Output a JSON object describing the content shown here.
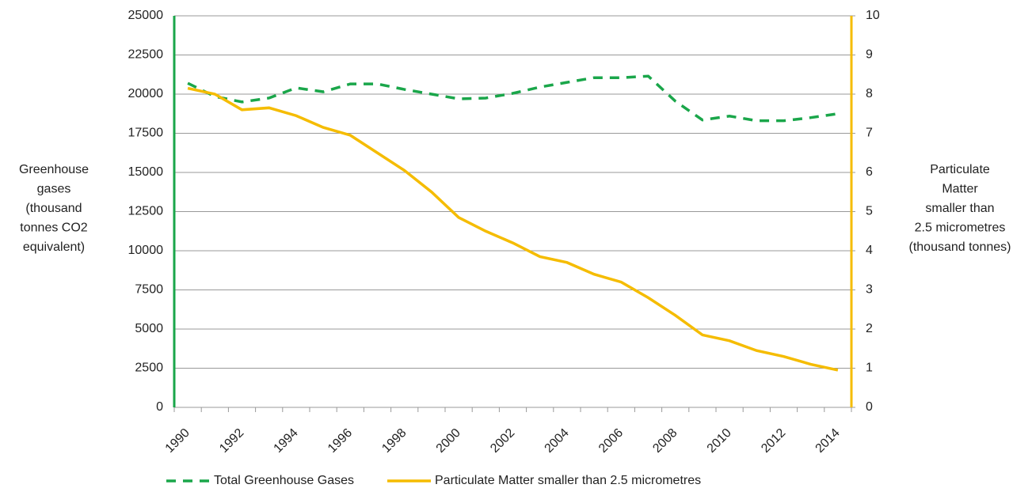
{
  "chart_data": {
    "type": "line",
    "y_label": [
      "Greenhouse",
      "gases",
      "(thousand",
      "tonnes CO2",
      "equivalent)"
    ],
    "y2_label": [
      "Particulate",
      "Matter",
      "smaller than",
      "2.5 micrometres",
      "(thousand tonnes)"
    ],
    "categories": [
      "1990",
      null,
      "1992",
      null,
      "1994",
      null,
      "1996",
      null,
      "1998",
      null,
      "2000",
      null,
      "2002",
      null,
      "2004",
      null,
      "2006",
      null,
      "2008",
      null,
      "2010",
      null,
      "2012",
      null,
      "2014"
    ],
    "series": [
      {
        "name": "Total Greenhouse Gases",
        "color": "#1aa64a",
        "dash": true,
        "axis": "y",
        "values": [
          20700,
          19850,
          19500,
          19750,
          20400,
          20150,
          20650,
          20650,
          20300,
          20000,
          19700,
          19750,
          20050,
          20450,
          20750,
          21050,
          21050,
          21150,
          19550,
          18350,
          18600,
          18300,
          18300,
          18500,
          18750
        ]
      },
      {
        "name": "Particulate Matter smaller than 2.5 micrometres",
        "color": "#f5bc00",
        "dash": false,
        "axis": "y2",
        "values": [
          8.15,
          8.0,
          7.6,
          7.65,
          7.45,
          7.15,
          6.95,
          6.5,
          6.05,
          5.5,
          4.85,
          4.5,
          4.2,
          3.85,
          3.7,
          3.4,
          3.2,
          2.8,
          2.35,
          1.85,
          1.7,
          1.45,
          1.3,
          1.1,
          0.95
        ]
      }
    ],
    "ylim": [
      0,
      25000
    ],
    "yticks": [
      0,
      2500,
      5000,
      7500,
      10000,
      12500,
      15000,
      17500,
      20000,
      22500,
      25000
    ],
    "y2lim": [
      0,
      10
    ],
    "y2ticks": [
      0,
      1,
      2,
      3,
      4,
      5,
      6,
      7,
      8,
      9,
      10
    ],
    "y_axis_color": "#1aa64a",
    "y2_axis_color": "#f5bc00",
    "grid": true,
    "legend": "bottom"
  }
}
